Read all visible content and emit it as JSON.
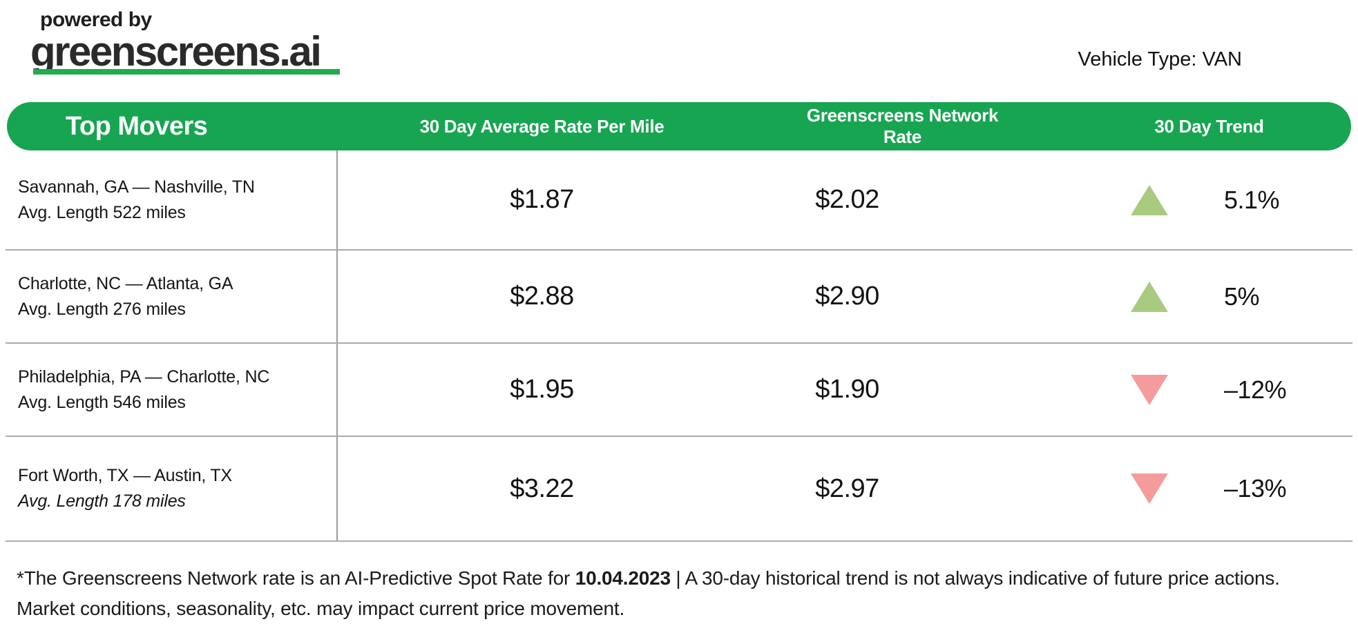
{
  "theme": {
    "header_green": "#17A551",
    "logo_underline_green": "#22AB4F",
    "trend_up_green": "#A8CB80",
    "trend_down_red": "#F49C9C",
    "divider_gray": "#ABABAB"
  },
  "header": {
    "powered_by": "powered by",
    "brand": "greenscreens.ai",
    "vehicle_type": "Vehicle Type: VAN"
  },
  "table": {
    "columns": [
      "Top Movers",
      "30 Day Average Rate Per Mile",
      "Greenscreens Network Rate",
      "30 Day Trend"
    ],
    "rows": [
      {
        "route": "Savannah, GA — Nashville, TN",
        "avg_length": "Avg. Length 522 miles",
        "avg_rate": "$1.87",
        "network_rate": "$2.02",
        "trend": "5.1%",
        "direction": "up"
      },
      {
        "route": "Charlotte, NC — Atlanta, GA",
        "avg_length": "Avg. Length 276 miles",
        "avg_rate": "$2.88",
        "network_rate": "$2.90",
        "trend": "5%",
        "direction": "up"
      },
      {
        "route": "Philadelphia, PA — Charlotte, NC",
        "avg_length": "Avg. Length 546 miles",
        "avg_rate": "$1.95",
        "network_rate": "$1.90",
        "trend": "–12%",
        "direction": "down"
      },
      {
        "route": "Fort Worth, TX — Austin, TX",
        "avg_length": "Avg. Length 178 miles",
        "avg_rate": "$3.22",
        "network_rate": "$2.97",
        "trend": "–13%",
        "direction": "down"
      }
    ]
  },
  "footnote": {
    "prefix": "*The Greenscreens Network rate is an AI-Predictive Spot Rate for ",
    "date": "10.04.2023",
    "suffix": " | A 30-day historical trend is not always indicative of future price actions. Market conditions, seasonality, etc. may impact current price movement."
  }
}
